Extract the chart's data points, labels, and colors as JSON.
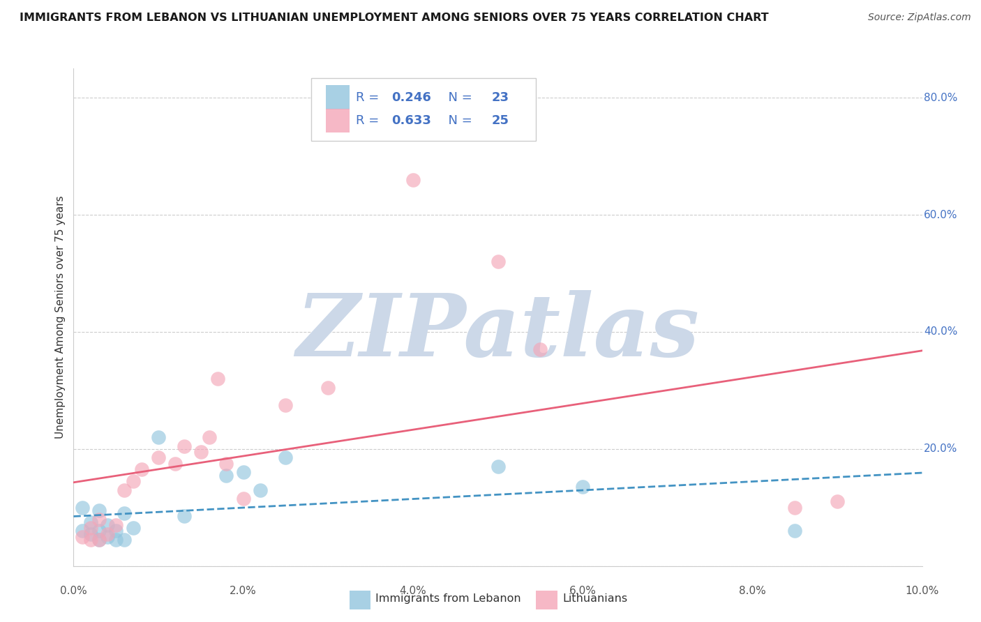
{
  "title": "IMMIGRANTS FROM LEBANON VS LITHUANIAN UNEMPLOYMENT AMONG SENIORS OVER 75 YEARS CORRELATION CHART",
  "source": "Source: ZipAtlas.com",
  "ylabel": "Unemployment Among Seniors over 75 years",
  "xlim": [
    0.0,
    0.1
  ],
  "ylim": [
    0.0,
    0.85
  ],
  "yticks": [
    0.0,
    0.2,
    0.4,
    0.6,
    0.8
  ],
  "xtick_labels": [
    "0.0%",
    "2.0%",
    "4.0%",
    "6.0%",
    "8.0%",
    "10.0%"
  ],
  "xtick_vals": [
    0.0,
    0.02,
    0.04,
    0.06,
    0.08,
    0.1
  ],
  "ytick_labels_right": [
    "",
    "20.0%",
    "40.0%",
    "60.0%",
    "80.0%"
  ],
  "legend_r1": "0.246",
  "legend_n1": "23",
  "legend_r2": "0.633",
  "legend_n2": "25",
  "blue_color": "#92c5de",
  "pink_color": "#f4a6b8",
  "blue_line_color": "#4393c3",
  "pink_line_color": "#e8607a",
  "blue_scatter_x": [
    0.001,
    0.001,
    0.002,
    0.002,
    0.003,
    0.003,
    0.003,
    0.004,
    0.004,
    0.005,
    0.005,
    0.006,
    0.006,
    0.007,
    0.01,
    0.013,
    0.018,
    0.02,
    0.022,
    0.025,
    0.05,
    0.06,
    0.085
  ],
  "blue_scatter_y": [
    0.06,
    0.1,
    0.055,
    0.075,
    0.045,
    0.06,
    0.095,
    0.05,
    0.07,
    0.045,
    0.06,
    0.045,
    0.09,
    0.065,
    0.22,
    0.085,
    0.155,
    0.16,
    0.13,
    0.185,
    0.17,
    0.135,
    0.06
  ],
  "pink_scatter_x": [
    0.001,
    0.002,
    0.002,
    0.003,
    0.003,
    0.004,
    0.005,
    0.006,
    0.007,
    0.008,
    0.01,
    0.012,
    0.013,
    0.015,
    0.016,
    0.017,
    0.018,
    0.02,
    0.025,
    0.03,
    0.04,
    0.05,
    0.055,
    0.085,
    0.09
  ],
  "pink_scatter_y": [
    0.05,
    0.045,
    0.065,
    0.045,
    0.08,
    0.055,
    0.07,
    0.13,
    0.145,
    0.165,
    0.185,
    0.175,
    0.205,
    0.195,
    0.22,
    0.32,
    0.175,
    0.115,
    0.275,
    0.305,
    0.66,
    0.52,
    0.37,
    0.1,
    0.11
  ],
  "background_color": "#ffffff",
  "watermark_text": "ZIPatlas",
  "watermark_color": "#ccd8e8",
  "legend_color": "#4472c4",
  "grid_color": "#cccccc",
  "title_fontsize": 11.5,
  "source_fontsize": 10,
  "tick_fontsize": 11,
  "ylabel_fontsize": 11
}
